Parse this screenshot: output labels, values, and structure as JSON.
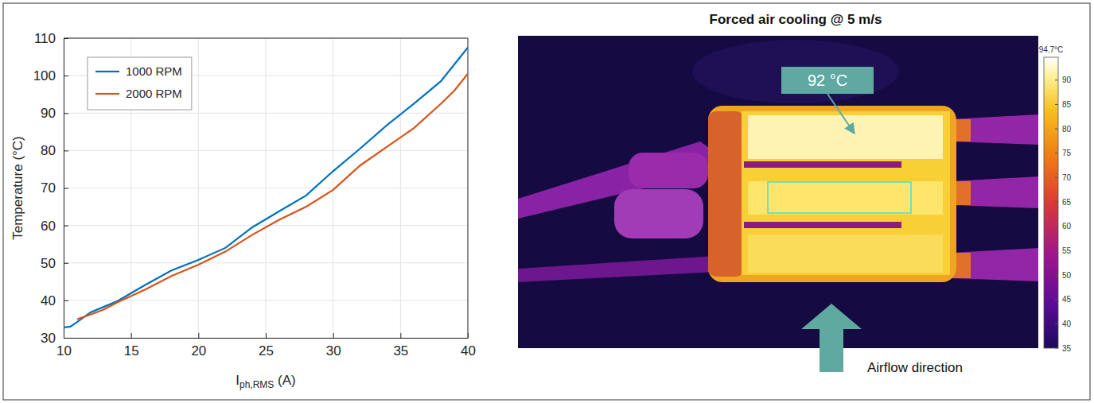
{
  "chart_data": [
    {
      "type": "line",
      "ylabel": "Temperature (°C)",
      "xlabel": {
        "text": "I",
        "subscript": "ph,RMS",
        "suffix": " (A)"
      },
      "x": [
        10,
        10.5,
        11,
        12,
        13,
        14,
        16,
        18,
        20,
        22,
        24,
        26,
        28,
        30,
        32,
        34,
        36,
        38,
        39,
        40
      ],
      "series": [
        {
          "name": "1000 RPM",
          "color": "#0072bd",
          "values": [
            32.8,
            33.0,
            34.2,
            36.8,
            38.3,
            39.8,
            44.0,
            48.0,
            50.8,
            54.0,
            59.5,
            63.8,
            68.0,
            74.5,
            80.5,
            86.8,
            92.5,
            98.5,
            103.0,
            107.5
          ]
        },
        {
          "name": "2000 RPM",
          "color": "#d95319",
          "values": [
            null,
            null,
            35.0,
            36.2,
            37.6,
            39.5,
            42.8,
            46.5,
            49.5,
            53.0,
            57.5,
            61.5,
            65.0,
            69.5,
            76.0,
            81.0,
            86.0,
            92.5,
            96.0,
            100.5
          ]
        }
      ],
      "xlim": [
        10,
        40
      ],
      "xticks": [
        10,
        15,
        20,
        25,
        30,
        35,
        40
      ],
      "ylim": [
        30,
        110
      ],
      "yticks": [
        30,
        40,
        50,
        60,
        70,
        80,
        90,
        100,
        110
      ],
      "grid": true,
      "legend": "upper left"
    },
    {
      "type": "thermal_image",
      "title": "Forced air cooling @ 5 m/s",
      "annotations": [
        {
          "text": "92 °C"
        },
        {
          "text": "Airflow direction"
        }
      ],
      "colorbar": {
        "range": [
          35,
          94.7
        ],
        "ticks": [
          35,
          40,
          45,
          50,
          55,
          60,
          65,
          70,
          75,
          80,
          85,
          90,
          {
            "value": 94.7,
            "label": "94.7°C"
          }
        ]
      }
    }
  ]
}
